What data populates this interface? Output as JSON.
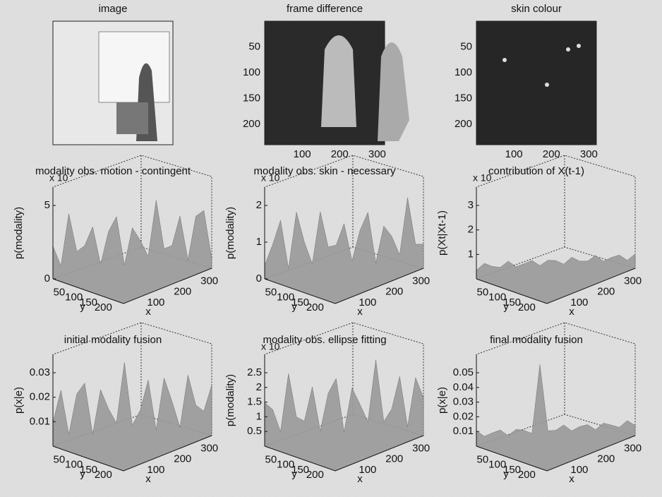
{
  "panels": [
    {
      "kind": "image",
      "title": "image"
    },
    {
      "kind": "image",
      "title": "frame difference",
      "yticks": [
        50,
        100,
        150,
        200
      ],
      "xticks": [
        100,
        200,
        300
      ]
    },
    {
      "kind": "image",
      "title": "skin colour",
      "yticks": [
        50,
        100,
        150,
        200
      ],
      "xticks": [
        100,
        200,
        300
      ]
    },
    {
      "kind": "surface",
      "title": "modality obs. motion - contingent",
      "scale": "x 10",
      "zlabel": "p(modality)",
      "zticks": [
        0,
        5
      ],
      "xlabel": "x",
      "ylabel": "y",
      "xticks": [
        100,
        200,
        300
      ],
      "yticks": [
        50,
        100,
        150,
        200
      ]
    },
    {
      "kind": "surface",
      "title": "modality obs. skin - necessary",
      "scale": "x 10",
      "zlabel": "p(modality)",
      "zticks": [
        0,
        1,
        2
      ],
      "xlabel": "x",
      "ylabel": "y",
      "xticks": [
        100,
        200,
        300
      ],
      "yticks": [
        50,
        100,
        150,
        200
      ]
    },
    {
      "kind": "surface",
      "title": "contribution of X(t-1)",
      "scale": "x 10",
      "zlabel": "p(Xt|Xt-1)",
      "zticks": [
        1,
        2,
        3
      ],
      "xlabel": "x",
      "ylabel": "y",
      "xticks": [
        100,
        200,
        300
      ],
      "yticks": [
        50,
        100,
        150,
        200
      ]
    },
    {
      "kind": "surface",
      "title": "initial modality fusion",
      "zlabel": "p(x|e)",
      "zticks": [
        0.01,
        0.02,
        0.03
      ],
      "xlabel": "x",
      "ylabel": "y",
      "xticks": [
        100,
        200,
        300
      ],
      "yticks": [
        50,
        100,
        150,
        200
      ]
    },
    {
      "kind": "surface",
      "title": "modality obs. ellipse fitting",
      "scale": "x 10",
      "zlabel": "p(modality)",
      "zticks": [
        0.5,
        1,
        1.5,
        2,
        2.5
      ],
      "xlabel": "x",
      "ylabel": "y",
      "xticks": [
        100,
        200,
        300
      ],
      "yticks": [
        50,
        100,
        150,
        200
      ]
    },
    {
      "kind": "surface",
      "title": "final modality fusion",
      "zlabel": "p(x|e)",
      "zticks": [
        0.01,
        0.02,
        0.03,
        0.04,
        0.05
      ],
      "xlabel": "x",
      "ylabel": "y",
      "xticks": [
        100,
        200,
        300
      ],
      "yticks": [
        50,
        100,
        150,
        200
      ]
    }
  ]
}
